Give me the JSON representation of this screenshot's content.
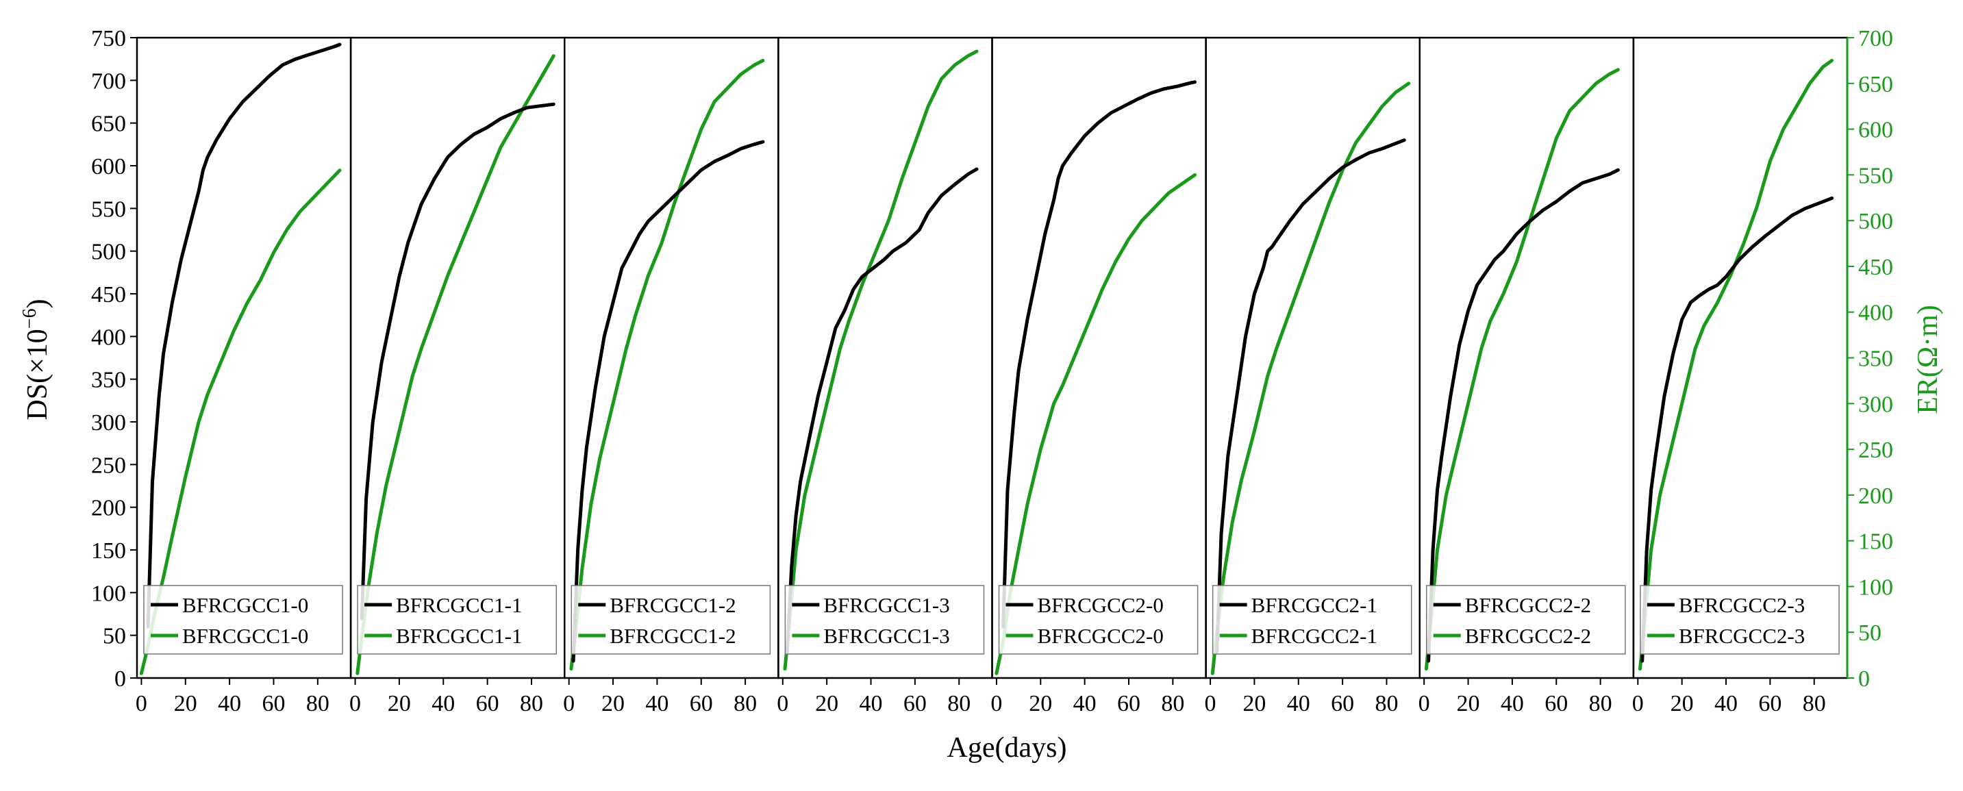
{
  "colors": {
    "ds": "#000000",
    "er": "#1a9a1a",
    "axis": "#000000"
  },
  "chart_data": {
    "type": "line",
    "xlabel": "Age(days)",
    "ylabel_left": "DS(×10",
    "ylabel_left_sup": "−6",
    "ylabel_left_close": ")",
    "ylabel_right": "ER(Ω·m)",
    "xlim": [
      -2,
      95
    ],
    "x_ticks": [
      0,
      20,
      40,
      60,
      80
    ],
    "ylim_left": [
      0,
      750
    ],
    "y_ticks_left": [
      0,
      50,
      100,
      150,
      200,
      250,
      300,
      350,
      400,
      450,
      500,
      550,
      600,
      650,
      700,
      750
    ],
    "ylim_right": [
      0,
      700
    ],
    "y_ticks_right": [
      0,
      50,
      100,
      150,
      200,
      250,
      300,
      350,
      400,
      450,
      500,
      550,
      600,
      650,
      700
    ],
    "legend_position": "bottom-left",
    "panels": [
      {
        "label": "BFRCGCC1-0",
        "ds": {
          "x": [
            3,
            5,
            8,
            10,
            14,
            18,
            22,
            26,
            28,
            30,
            34,
            40,
            46,
            52,
            58,
            64,
            70,
            76,
            82,
            88,
            90
          ],
          "y": [
            60,
            230,
            330,
            380,
            440,
            490,
            530,
            570,
            595,
            610,
            630,
            655,
            675,
            690,
            705,
            718,
            725,
            730,
            735,
            740,
            742
          ]
        },
        "er": {
          "x": [
            0,
            3,
            6,
            10,
            14,
            20,
            26,
            30,
            36,
            42,
            48,
            54,
            60,
            66,
            72,
            78,
            84,
            90
          ],
          "y": [
            5,
            35,
            70,
            110,
            155,
            220,
            280,
            310,
            345,
            380,
            410,
            435,
            465,
            490,
            510,
            525,
            540,
            555
          ]
        }
      },
      {
        "label": "BFRCGCC1-1",
        "ds": {
          "x": [
            3,
            5,
            8,
            12,
            16,
            20,
            24,
            26,
            30,
            36,
            42,
            48,
            54,
            60,
            66,
            72,
            78,
            84,
            90
          ],
          "y": [
            70,
            210,
            300,
            370,
            420,
            470,
            510,
            525,
            555,
            585,
            610,
            625,
            637,
            645,
            655,
            662,
            668,
            670,
            672
          ]
        },
        "er": {
          "x": [
            1,
            3,
            6,
            10,
            14,
            20,
            26,
            30,
            36,
            42,
            48,
            54,
            60,
            66,
            72,
            78,
            84,
            90
          ],
          "y": [
            5,
            45,
            100,
            160,
            210,
            270,
            330,
            360,
            400,
            440,
            475,
            510,
            545,
            580,
            605,
            630,
            655,
            680
          ]
        }
      },
      {
        "label": "BFRCGCC1-2",
        "ds": {
          "x": [
            2,
            4,
            6,
            8,
            12,
            16,
            20,
            24,
            28,
            32,
            36,
            42,
            48,
            54,
            60,
            66,
            72,
            78,
            84,
            88
          ],
          "y": [
            20,
            150,
            220,
            270,
            340,
            400,
            440,
            480,
            500,
            520,
            535,
            550,
            565,
            580,
            595,
            605,
            612,
            620,
            625,
            628
          ]
        },
        "er": {
          "x": [
            1,
            3,
            6,
            10,
            14,
            20,
            26,
            30,
            36,
            42,
            48,
            54,
            60,
            66,
            72,
            78,
            84,
            88
          ],
          "y": [
            10,
            50,
            120,
            190,
            240,
            300,
            360,
            395,
            440,
            475,
            520,
            560,
            600,
            630,
            645,
            660,
            670,
            675
          ]
        }
      },
      {
        "label": "BFRCGCC1-3",
        "ds": {
          "x": [
            2,
            4,
            6,
            8,
            12,
            16,
            20,
            24,
            28,
            32,
            36,
            40,
            46,
            50,
            56,
            62,
            66,
            72,
            78,
            84,
            88
          ],
          "y": [
            30,
            130,
            190,
            230,
            280,
            330,
            370,
            410,
            430,
            455,
            470,
            478,
            490,
            500,
            510,
            525,
            545,
            565,
            578,
            590,
            596
          ]
        },
        "er": {
          "x": [
            1,
            3,
            6,
            10,
            14,
            20,
            26,
            30,
            36,
            42,
            48,
            54,
            60,
            66,
            72,
            78,
            84,
            88
          ],
          "y": [
            10,
            60,
            140,
            200,
            240,
            300,
            360,
            390,
            430,
            465,
            500,
            545,
            585,
            625,
            655,
            670,
            680,
            685
          ]
        }
      },
      {
        "label": "BFRCGCC2-0",
        "ds": {
          "x": [
            3,
            5,
            8,
            10,
            14,
            18,
            22,
            26,
            28,
            30,
            34,
            40,
            46,
            52,
            58,
            64,
            70,
            76,
            82,
            88,
            90
          ],
          "y": [
            60,
            220,
            310,
            360,
            420,
            470,
            520,
            560,
            585,
            600,
            615,
            635,
            650,
            662,
            670,
            678,
            685,
            690,
            693,
            697,
            698
          ]
        },
        "er": {
          "x": [
            0,
            3,
            6,
            10,
            14,
            20,
            26,
            30,
            36,
            42,
            48,
            54,
            60,
            66,
            72,
            78,
            84,
            90
          ],
          "y": [
            5,
            40,
            90,
            140,
            190,
            250,
            300,
            320,
            355,
            390,
            425,
            455,
            480,
            500,
            515,
            530,
            540,
            550
          ]
        }
      },
      {
        "label": "BFRCGCC2-1",
        "ds": {
          "x": [
            3,
            5,
            8,
            12,
            16,
            20,
            24,
            26,
            28,
            32,
            36,
            42,
            48,
            54,
            60,
            66,
            72,
            78,
            84,
            88
          ],
          "y": [
            30,
            170,
            260,
            330,
            400,
            450,
            480,
            500,
            505,
            520,
            535,
            555,
            570,
            585,
            598,
            607,
            615,
            620,
            626,
            630
          ]
        },
        "er": {
          "x": [
            1,
            3,
            6,
            10,
            14,
            20,
            26,
            30,
            36,
            42,
            48,
            54,
            60,
            66,
            72,
            78,
            84,
            90
          ],
          "y": [
            5,
            50,
            110,
            170,
            215,
            270,
            330,
            360,
            400,
            440,
            480,
            520,
            555,
            585,
            605,
            625,
            640,
            650
          ]
        }
      },
      {
        "label": "BFRCGCC2-2",
        "ds": {
          "x": [
            2,
            4,
            6,
            8,
            12,
            16,
            20,
            24,
            28,
            32,
            36,
            42,
            48,
            54,
            60,
            66,
            72,
            78,
            84,
            88
          ],
          "y": [
            20,
            150,
            220,
            260,
            330,
            390,
            430,
            460,
            475,
            490,
            500,
            520,
            535,
            548,
            558,
            570,
            580,
            585,
            590,
            595
          ]
        },
        "er": {
          "x": [
            1,
            3,
            6,
            10,
            14,
            20,
            26,
            30,
            36,
            42,
            48,
            54,
            60,
            66,
            72,
            78,
            84,
            88
          ],
          "y": [
            10,
            60,
            140,
            200,
            240,
            300,
            360,
            390,
            420,
            455,
            500,
            545,
            590,
            620,
            635,
            650,
            660,
            665
          ]
        }
      },
      {
        "label": "BFRCGCC2-3",
        "ds": {
          "x": [
            2,
            4,
            6,
            8,
            12,
            16,
            20,
            24,
            28,
            32,
            36,
            40,
            46,
            52,
            58,
            64,
            70,
            76,
            82,
            88
          ],
          "y": [
            20,
            150,
            220,
            260,
            330,
            380,
            420,
            440,
            448,
            455,
            460,
            470,
            490,
            505,
            518,
            530,
            542,
            550,
            556,
            562
          ]
        },
        "er": {
          "x": [
            1,
            3,
            6,
            10,
            14,
            20,
            26,
            30,
            36,
            42,
            48,
            54,
            60,
            66,
            72,
            78,
            84,
            88
          ],
          "y": [
            10,
            60,
            140,
            200,
            240,
            300,
            360,
            385,
            410,
            440,
            475,
            515,
            565,
            600,
            625,
            650,
            668,
            675
          ]
        }
      }
    ]
  }
}
